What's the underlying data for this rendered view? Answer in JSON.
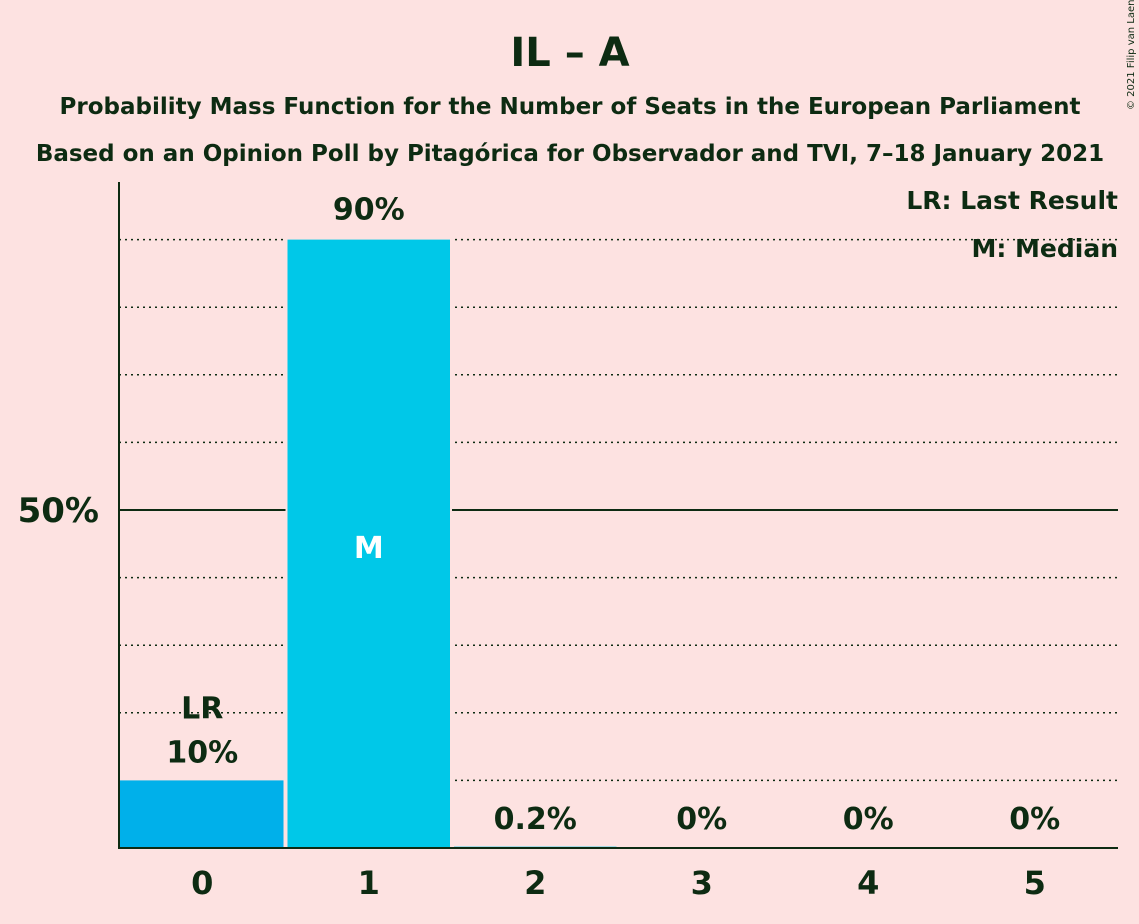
{
  "title": "IL – A",
  "subtitle1": "Probability Mass Function for the Number of Seats in the European Parliament",
  "subtitle2": "Based on an Opinion Poll by Pitagórica for Observador and TVI, 7–18 January 2021",
  "copyright": "© 2021 Filip van Laenen",
  "legend": {
    "lr": "LR: Last Result",
    "m": "M: Median"
  },
  "colors": {
    "background": "#fde2e1",
    "bar_last_result": "#00b0ea",
    "bar": "#00c8e8",
    "text": "#0d2b12"
  },
  "chart_data": {
    "type": "bar",
    "categories": [
      "0",
      "1",
      "2",
      "3",
      "4",
      "5"
    ],
    "values": [
      10,
      90,
      0.2,
      0,
      0,
      0
    ],
    "value_labels": [
      "10%",
      "90%",
      "0.2%",
      "0%",
      "0%",
      "0%"
    ],
    "ylim": [
      0,
      100
    ],
    "y_ticks": [
      {
        "value": 50,
        "label": "50%"
      }
    ],
    "gridlines": [
      10,
      20,
      30,
      40,
      60,
      70,
      80,
      90
    ],
    "last_result_index": 0,
    "last_result_marker": "LR",
    "median_index": 1,
    "median_marker": "M",
    "legend_position": "top-right"
  }
}
